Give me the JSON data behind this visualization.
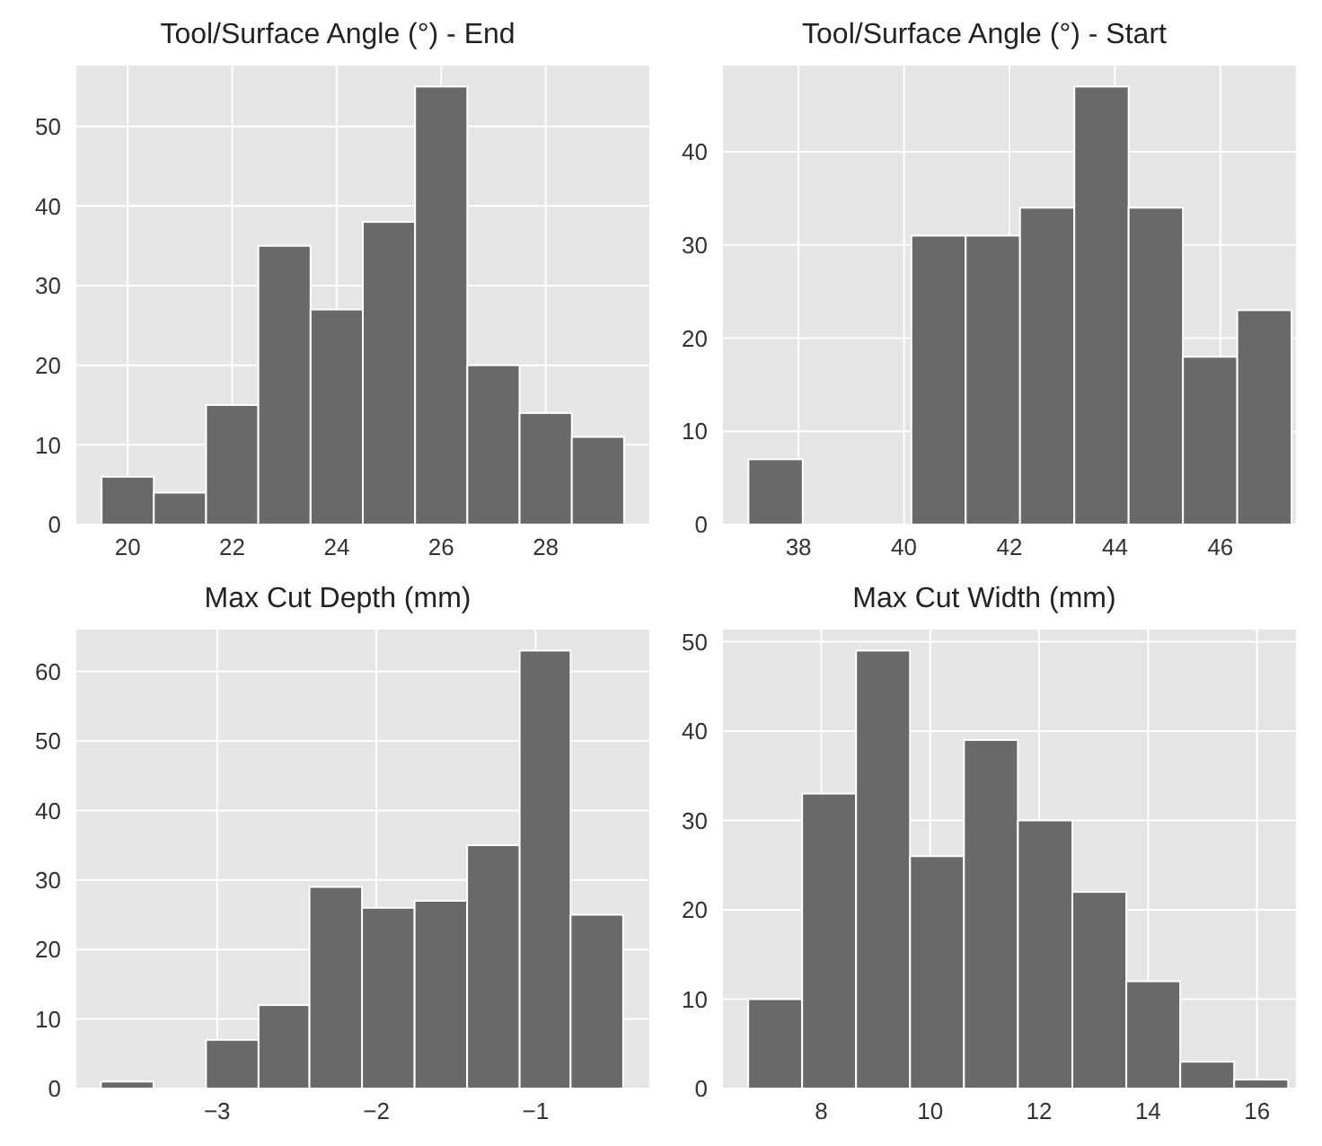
{
  "chart_data": [
    {
      "type": "histogram",
      "title": "Tool/Surface Angle (°) - End",
      "bins": [
        19.5,
        20.5,
        21.5,
        22.5,
        23.5,
        24.5,
        25.5,
        26.5,
        27.5,
        28.5,
        29.5
      ],
      "values": [
        6,
        4,
        15,
        35,
        27,
        38,
        55,
        20,
        14,
        11
      ],
      "color": "#696969",
      "xlim": [
        19.0,
        30.0
      ],
      "ylim": [
        0,
        57.75
      ],
      "xticks": [
        20,
        22,
        24,
        26,
        28
      ],
      "yticks": [
        0,
        10,
        20,
        30,
        40,
        50
      ],
      "grid": true
    },
    {
      "type": "histogram",
      "title": "Tool/Surface Angle (°) - Start",
      "bins": [
        37.05,
        38.08,
        39.11,
        40.14,
        41.17,
        42.2,
        43.23,
        44.26,
        45.29,
        46.32,
        47.35
      ],
      "values": [
        7,
        0,
        0,
        31,
        31,
        34,
        47,
        34,
        18,
        23
      ],
      "color": "#696969",
      "xlim": [
        36.55,
        47.45
      ],
      "ylim": [
        0,
        49.35
      ],
      "xticks": [
        38,
        40,
        42,
        44,
        46
      ],
      "yticks": [
        0,
        10,
        20,
        30,
        40
      ],
      "grid": true
    },
    {
      "type": "histogram",
      "title": "Max Cut Depth (mm)",
      "bins": [
        -3.73,
        -3.4,
        -3.07,
        -2.74,
        -2.42,
        -2.09,
        -1.76,
        -1.43,
        -1.1,
        -0.78,
        -0.45
      ],
      "values": [
        1,
        0,
        7,
        12,
        29,
        26,
        27,
        35,
        63,
        25
      ],
      "color": "#696969",
      "xlim": [
        -3.89,
        -0.28
      ],
      "ylim": [
        0,
        66.15
      ],
      "xticks": [
        -3,
        -2,
        -1
      ],
      "yticks": [
        0,
        10,
        20,
        30,
        40,
        50,
        60
      ],
      "grid": true
    },
    {
      "type": "histogram",
      "title": "Max Cut Width (mm)",
      "bins": [
        6.66,
        7.65,
        8.64,
        9.63,
        10.62,
        11.61,
        12.61,
        13.6,
        14.59,
        15.58,
        16.57
      ],
      "values": [
        10,
        33,
        49,
        26,
        39,
        30,
        22,
        12,
        3,
        1
      ],
      "color": "#696969",
      "xlim": [
        6.18,
        16.73
      ],
      "ylim": [
        0,
        51.45
      ],
      "xticks": [
        8,
        10,
        12,
        14,
        16
      ],
      "yticks": [
        0,
        10,
        20,
        30,
        40,
        50
      ],
      "grid": true
    }
  ]
}
